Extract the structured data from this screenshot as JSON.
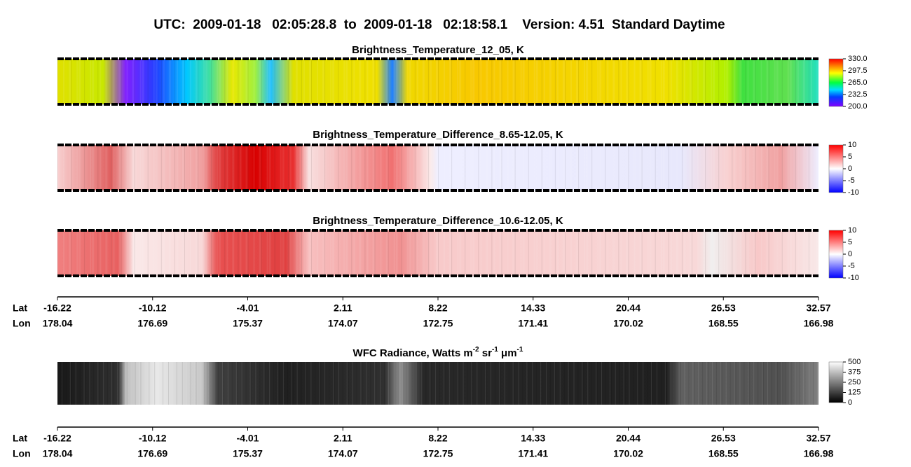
{
  "header": {
    "title": "UTC:  2009-01-18   02:05:28.8  to  2009-01-18   02:18:58.1    Version: 4.51  Standard Daytime"
  },
  "panels": [
    {
      "title": "Brightness_Temperature_12_05, K",
      "colorbar": [
        "330.0",
        "297.5",
        "265.0",
        "232.5",
        "200.0"
      ]
    },
    {
      "title": "Brightness_Temperature_Difference_8.65-12.05, K",
      "colorbar": [
        "10",
        "5",
        "0",
        "-5",
        "-10"
      ]
    },
    {
      "title": "Brightness_Temperature_Difference_10.6-12.05, K",
      "colorbar": [
        "10",
        "5",
        "0",
        "-5",
        "-10"
      ]
    }
  ],
  "wfc": {
    "title_parts": [
      "WFC Radiance, Watts m",
      "-2",
      " sr",
      "-1",
      " μm",
      "-1"
    ],
    "colorbar": [
      "500",
      "375",
      "250",
      "125",
      "0"
    ]
  },
  "axes": [
    {
      "lat_label": "Lat",
      "lon_label": "Lon",
      "lat": [
        "-16.22",
        "-10.12",
        "-4.01",
        "2.11",
        "8.22",
        "14.33",
        "20.44",
        "26.53",
        "32.57"
      ],
      "lon": [
        "178.04",
        "176.69",
        "175.37",
        "174.07",
        "172.75",
        "171.41",
        "170.02",
        "168.55",
        "166.98"
      ]
    },
    {
      "lat_label": "Lat",
      "lon_label": "Lon",
      "lat": [
        "-16.22",
        "-10.12",
        "-4.01",
        "2.11",
        "8.22",
        "14.33",
        "20.44",
        "26.53",
        "32.57"
      ],
      "lon": [
        "178.04",
        "176.69",
        "175.37",
        "174.07",
        "172.75",
        "171.41",
        "170.02",
        "168.55",
        "166.98"
      ]
    }
  ]
}
